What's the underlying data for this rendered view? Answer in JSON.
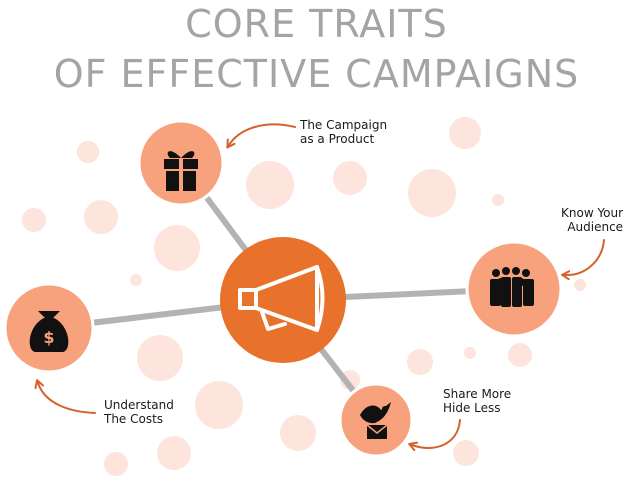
{
  "title": {
    "line1": "CORE TRAITS",
    "line2": "OF EFFECTIVE CAMPAIGNS"
  },
  "colors": {
    "title": "#a4a4a4",
    "hub": "#e8722c",
    "node": "#f7a27c",
    "bubble": "#fde4dc",
    "connector": "#b3b3b3",
    "arrow": "#d4622c"
  },
  "hub": {
    "icon": "megaphone-icon"
  },
  "nodes": [
    {
      "id": "product",
      "icon": "gift-icon",
      "label_lines": [
        "The Campaign",
        "as a Product"
      ]
    },
    {
      "id": "audience",
      "icon": "people-group-icon",
      "label_lines": [
        "Know Your",
        "Audience"
      ]
    },
    {
      "id": "costs",
      "icon": "money-bag-icon",
      "label_lines": [
        "Understand",
        "The Costs"
      ]
    },
    {
      "id": "share",
      "icon": "dove-letter-icon",
      "label_lines": [
        "Share More",
        "Hide Less"
      ]
    }
  ]
}
